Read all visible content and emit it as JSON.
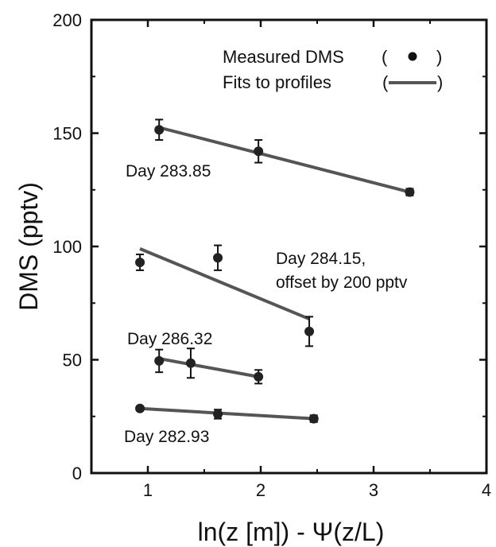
{
  "chart_data": {
    "type": "scatter",
    "title": "",
    "xlabel": "ln(z [m]) - Ψ(z/L)",
    "ylabel": "DMS (pptv)",
    "xlim": [
      0.5,
      4
    ],
    "ylim": [
      0,
      200
    ],
    "xticks": [
      1,
      2,
      3,
      4
    ],
    "yticks": [
      0,
      50,
      100,
      150,
      200
    ],
    "xtick_labels": [
      "1",
      "2",
      "3",
      "4"
    ],
    "ytick_labels": [
      "0",
      "50",
      "100",
      "150",
      "200"
    ],
    "grid": false,
    "legend": {
      "placement": "top-right",
      "entries": [
        {
          "label": "Measured DMS",
          "open": "(",
          "close": ")",
          "marker": "point"
        },
        {
          "label": "Fits to profiles",
          "open": "(",
          "close": ")",
          "marker": "line"
        }
      ]
    },
    "series": [
      {
        "name": "Day 283.85",
        "points": [
          {
            "x": 1.1,
            "y": 151.5,
            "err": 4.5
          },
          {
            "x": 1.98,
            "y": 142,
            "err": 5
          },
          {
            "x": 3.32,
            "y": 124,
            "err": 1.5
          }
        ],
        "fit": [
          [
            1.1,
            152.5
          ],
          [
            3.32,
            124
          ]
        ]
      },
      {
        "name": "Day 284.15, offset by 200 pptv",
        "points": [
          {
            "x": 0.93,
            "y": 93,
            "err": 3.5
          },
          {
            "x": 1.62,
            "y": 95,
            "err": 5.5
          },
          {
            "x": 2.43,
            "y": 62.5,
            "err": 6.5
          }
        ],
        "fit": [
          [
            0.93,
            99
          ],
          [
            2.43,
            68
          ]
        ]
      },
      {
        "name": "Day 286.32",
        "points": [
          {
            "x": 1.1,
            "y": 49.5,
            "err": 5
          },
          {
            "x": 1.38,
            "y": 48.5,
            "err": 6.5
          },
          {
            "x": 1.98,
            "y": 42.5,
            "err": 3
          }
        ],
        "fit": [
          [
            1.1,
            50.5
          ],
          [
            1.98,
            42.5
          ]
        ]
      },
      {
        "name": "Day 282.93",
        "points": [
          {
            "x": 0.93,
            "y": 28.5,
            "err": 1
          },
          {
            "x": 1.62,
            "y": 26,
            "err": 2
          },
          {
            "x": 2.47,
            "y": 24,
            "err": 1.5
          }
        ],
        "fit": [
          [
            0.93,
            28.5
          ],
          [
            2.47,
            24
          ]
        ]
      }
    ],
    "annotations": [
      {
        "text": "Day 283.85",
        "series": 0
      },
      {
        "text": "Day 284.15,",
        "series": 1
      },
      {
        "text": "offset by 200 pptv",
        "series": 1
      },
      {
        "text": "Day 286.32",
        "series": 2
      },
      {
        "text": "Day 282.93",
        "series": 3
      }
    ]
  }
}
